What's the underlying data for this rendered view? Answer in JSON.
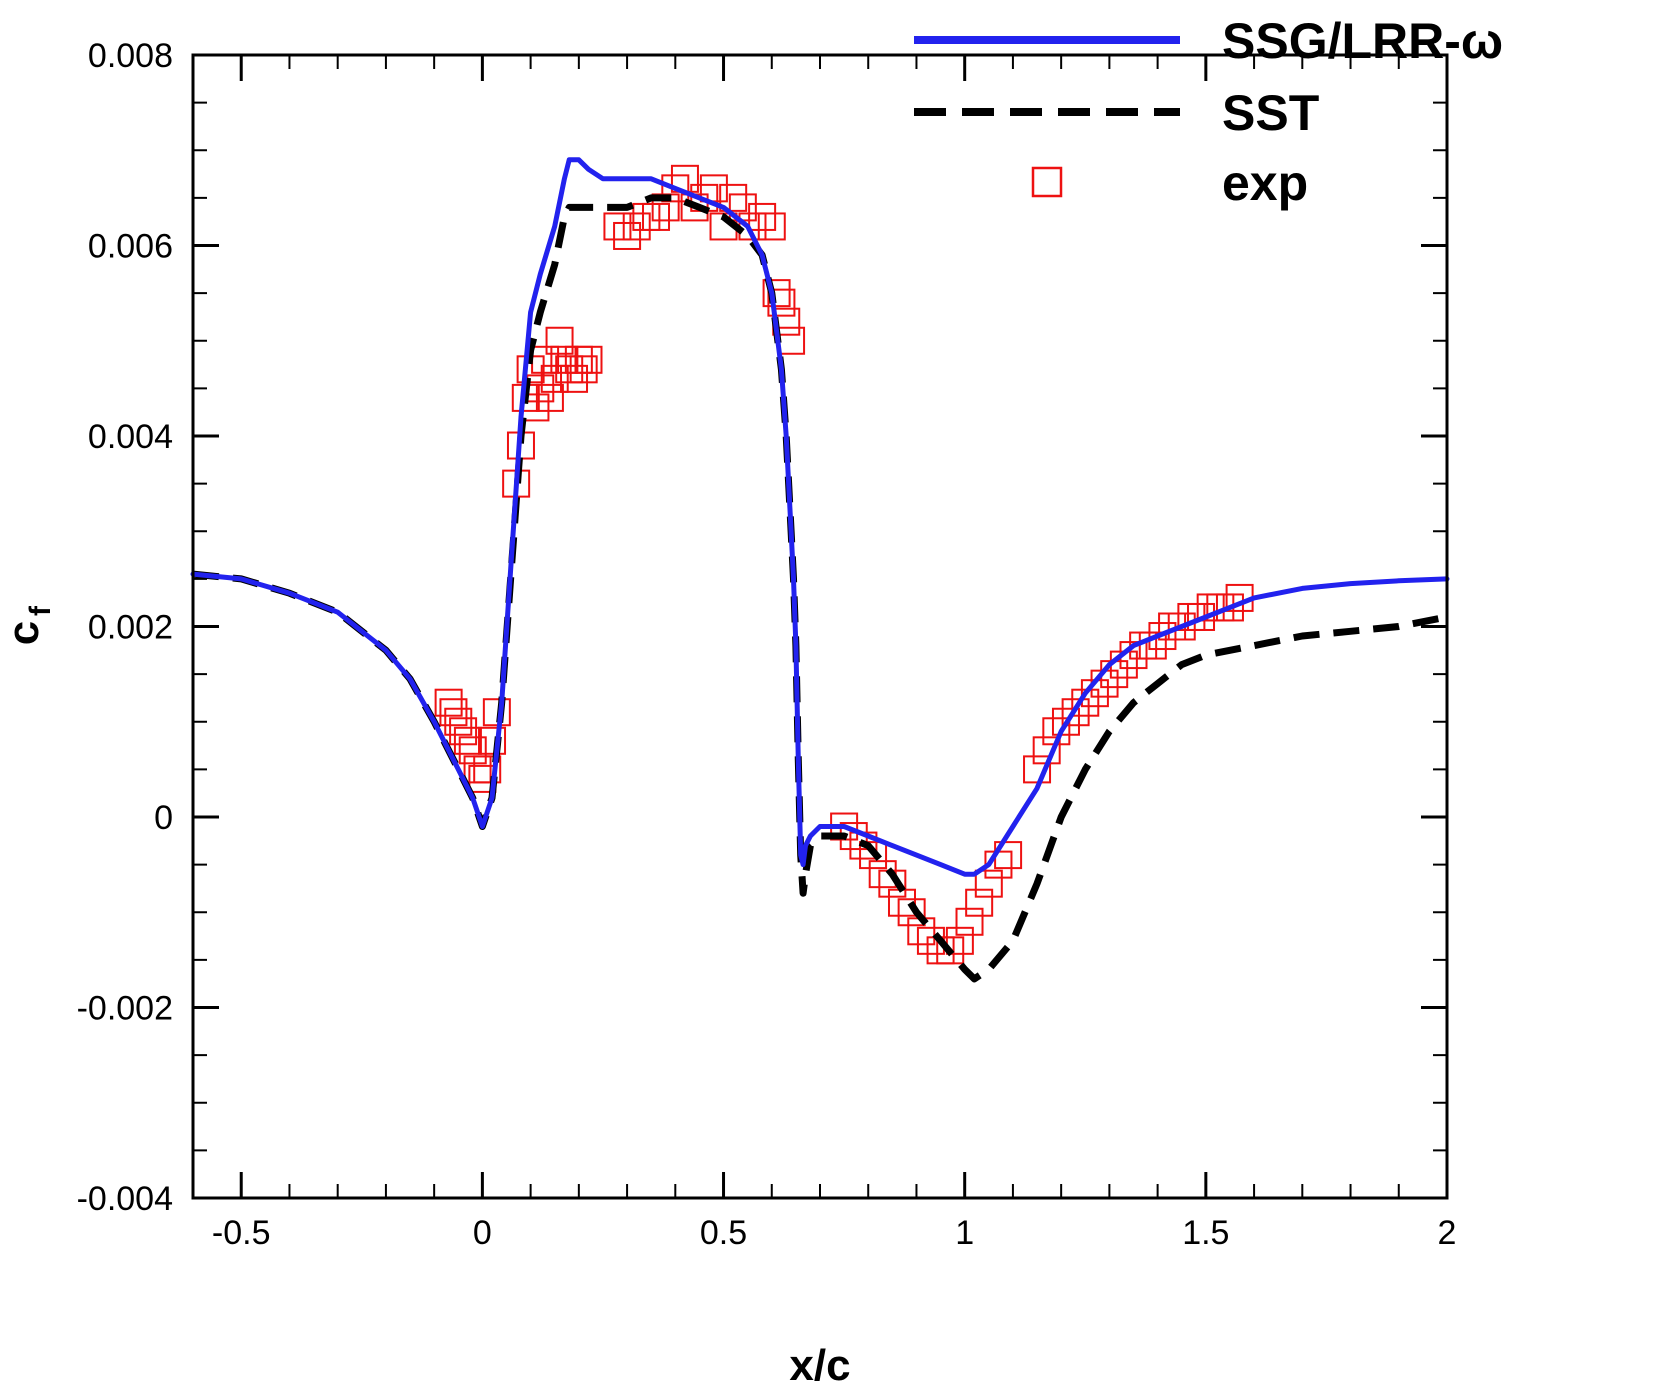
{
  "chart_data": {
    "type": "line",
    "title": "",
    "xlabel": "x/c",
    "ylabel_main": "c",
    "ylabel_sub": "f",
    "xlim": [
      -0.6,
      2.0
    ],
    "ylim": [
      -0.004,
      0.008
    ],
    "x_ticks": [
      -0.5,
      0,
      0.5,
      1,
      1.5,
      2
    ],
    "x_tick_labels": [
      "-0.5",
      "0",
      "0.5",
      "1",
      "1.5",
      "2"
    ],
    "y_ticks": [
      -0.004,
      -0.002,
      0,
      0.002,
      0.004,
      0.006,
      0.008
    ],
    "y_tick_labels": [
      "-0.004",
      "-0.002",
      "0",
      "0.002",
      "0.004",
      "0.006",
      "0.008"
    ],
    "legend_position": "top-right",
    "series": [
      {
        "name": "SSG/LRR-ω",
        "style": "solid",
        "color": "#2222ee",
        "x": [
          -0.6,
          -0.5,
          -0.4,
          -0.3,
          -0.2,
          -0.15,
          -0.1,
          -0.05,
          -0.02,
          0.0,
          0.02,
          0.04,
          0.06,
          0.08,
          0.1,
          0.12,
          0.15,
          0.17,
          0.18,
          0.2,
          0.22,
          0.25,
          0.3,
          0.35,
          0.4,
          0.45,
          0.5,
          0.55,
          0.58,
          0.6,
          0.62,
          0.63,
          0.64,
          0.645,
          0.65,
          0.655,
          0.66,
          0.665,
          0.67,
          0.68,
          0.7,
          0.75,
          0.8,
          0.85,
          0.9,
          0.95,
          1.0,
          1.02,
          1.05,
          1.1,
          1.15,
          1.2,
          1.25,
          1.3,
          1.35,
          1.4,
          1.45,
          1.5,
          1.55,
          1.6,
          1.7,
          1.8,
          1.9,
          2.0
        ],
        "y": [
          0.00255,
          0.0025,
          0.00235,
          0.00215,
          0.00175,
          0.00145,
          0.001,
          0.0005,
          0.0002,
          -0.0001,
          0.0002,
          0.0012,
          0.0027,
          0.0042,
          0.0053,
          0.0057,
          0.0062,
          0.0067,
          0.0069,
          0.0069,
          0.0068,
          0.0067,
          0.0067,
          0.0067,
          0.0066,
          0.0065,
          0.0064,
          0.0062,
          0.0059,
          0.0055,
          0.0047,
          0.004,
          0.003,
          0.0025,
          0.0018,
          0.0006,
          -0.0004,
          -0.0005,
          -0.0003,
          -0.0002,
          -0.0001,
          -0.0001,
          -0.0002,
          -0.0003,
          -0.0004,
          -0.0005,
          -0.0006,
          -0.0006,
          -0.0005,
          -0.0001,
          0.0003,
          0.0009,
          0.0013,
          0.0016,
          0.0018,
          0.0019,
          0.002,
          0.0021,
          0.0022,
          0.0023,
          0.0024,
          0.00245,
          0.00248,
          0.0025
        ]
      },
      {
        "name": "SST",
        "style": "dashed",
        "color": "#000000",
        "x": [
          -0.6,
          -0.5,
          -0.4,
          -0.3,
          -0.2,
          -0.15,
          -0.1,
          -0.05,
          -0.02,
          0.0,
          0.02,
          0.04,
          0.06,
          0.08,
          0.1,
          0.12,
          0.15,
          0.17,
          0.18,
          0.2,
          0.25,
          0.3,
          0.35,
          0.4,
          0.45,
          0.5,
          0.55,
          0.58,
          0.6,
          0.62,
          0.63,
          0.64,
          0.645,
          0.65,
          0.655,
          0.66,
          0.665,
          0.67,
          0.68,
          0.7,
          0.75,
          0.8,
          0.85,
          0.9,
          0.95,
          1.0,
          1.02,
          1.05,
          1.1,
          1.15,
          1.2,
          1.25,
          1.3,
          1.35,
          1.4,
          1.45,
          1.5,
          1.6,
          1.7,
          1.8,
          1.9,
          2.0
        ],
        "y": [
          0.00255,
          0.0025,
          0.00235,
          0.00215,
          0.00175,
          0.00145,
          0.001,
          0.0005,
          0.0002,
          -0.0001,
          0.0002,
          0.0012,
          0.0026,
          0.004,
          0.0049,
          0.0053,
          0.0058,
          0.0063,
          0.0064,
          0.0064,
          0.0064,
          0.0064,
          0.0065,
          0.0065,
          0.0064,
          0.0063,
          0.0061,
          0.0059,
          0.0055,
          0.0047,
          0.004,
          0.003,
          0.0025,
          0.0018,
          0.0006,
          -0.0004,
          -0.0008,
          -0.0006,
          -0.0003,
          -0.0002,
          -0.0002,
          -0.0003,
          -0.0006,
          -0.001,
          -0.0013,
          -0.0016,
          -0.0017,
          -0.0016,
          -0.0013,
          -0.0007,
          0.0,
          0.0005,
          0.0009,
          0.0012,
          0.0014,
          0.0016,
          0.0017,
          0.0018,
          0.0019,
          0.00195,
          0.002,
          0.0021
        ]
      },
      {
        "name": "exp",
        "style": "markers",
        "marker": "open-square",
        "color": "#ee1111",
        "x": [
          -0.07,
          -0.06,
          -0.05,
          -0.04,
          -0.03,
          -0.02,
          -0.01,
          0.0,
          0.01,
          0.02,
          0.03,
          0.07,
          0.08,
          0.09,
          0.1,
          0.11,
          0.12,
          0.13,
          0.14,
          0.15,
          0.16,
          0.17,
          0.18,
          0.19,
          0.2,
          0.21,
          0.22,
          0.28,
          0.3,
          0.32,
          0.34,
          0.36,
          0.38,
          0.4,
          0.42,
          0.44,
          0.46,
          0.48,
          0.5,
          0.52,
          0.54,
          0.56,
          0.58,
          0.6,
          0.61,
          0.62,
          0.63,
          0.64,
          0.75,
          0.77,
          0.79,
          0.81,
          0.83,
          0.85,
          0.87,
          0.89,
          0.91,
          0.93,
          0.95,
          0.97,
          0.99,
          1.01,
          1.03,
          1.05,
          1.07,
          1.09,
          1.15,
          1.17,
          1.19,
          1.21,
          1.23,
          1.25,
          1.27,
          1.29,
          1.31,
          1.33,
          1.35,
          1.37,
          1.39,
          1.41,
          1.43,
          1.45,
          1.47,
          1.49,
          1.51,
          1.53,
          1.55,
          1.57
        ],
        "y": [
          0.0012,
          0.0011,
          0.001,
          0.0009,
          0.0008,
          0.0007,
          0.0005,
          0.0004,
          0.0005,
          0.0008,
          0.0011,
          0.0035,
          0.0039,
          0.0044,
          0.0047,
          0.0043,
          0.0045,
          0.0048,
          0.0044,
          0.0046,
          0.005,
          0.0048,
          0.0047,
          0.0046,
          0.0048,
          0.0047,
          0.0048,
          0.0062,
          0.0061,
          0.0062,
          0.0063,
          0.0063,
          0.0064,
          0.0066,
          0.0067,
          0.0064,
          0.0065,
          0.0066,
          0.0062,
          0.0065,
          0.0064,
          0.0062,
          0.0063,
          0.0062,
          0.0055,
          0.0054,
          0.0052,
          0.005,
          -0.0001,
          -0.0002,
          -0.0003,
          -0.0004,
          -0.0006,
          -0.0007,
          -0.0009,
          -0.001,
          -0.0012,
          -0.0013,
          -0.0014,
          -0.0014,
          -0.0013,
          -0.0011,
          -0.0009,
          -0.0007,
          -0.0005,
          -0.0004,
          0.0005,
          0.0007,
          0.0009,
          0.001,
          0.0011,
          0.0012,
          0.0013,
          0.0014,
          0.0015,
          0.0016,
          0.0017,
          0.0018,
          0.0018,
          0.0019,
          0.002,
          0.002,
          0.0021,
          0.0021,
          0.0022,
          0.0022,
          0.0022,
          0.0023
        ]
      }
    ]
  }
}
